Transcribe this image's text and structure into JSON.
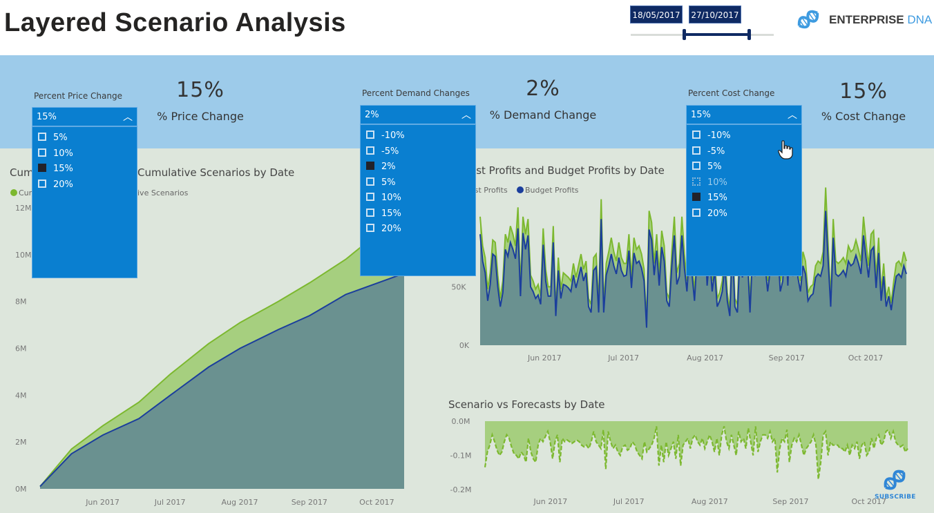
{
  "header": {
    "title": "Layered Scenario Analysis",
    "date_start": "18/05/2017",
    "date_end": "27/10/2017",
    "date_range_fraction": [
      0.37,
      0.83
    ],
    "logo": {
      "icon": "dna-icon",
      "word1": "ENTERPRISE",
      "word2": "DNA"
    }
  },
  "slicers": [
    {
      "title": "Percent Price Change",
      "selected": "15%",
      "items": [
        {
          "label": "5%",
          "state": "unchecked"
        },
        {
          "label": "10%",
          "state": "unchecked"
        },
        {
          "label": "15%",
          "state": "checked"
        },
        {
          "label": "20%",
          "state": "unchecked"
        }
      ]
    },
    {
      "title": "Percent Demand Changes",
      "selected": "2%",
      "items": [
        {
          "label": "-10%",
          "state": "unchecked"
        },
        {
          "label": "-5%",
          "state": "unchecked"
        },
        {
          "label": "2%",
          "state": "checked"
        },
        {
          "label": "5%",
          "state": "unchecked"
        },
        {
          "label": "10%",
          "state": "unchecked"
        },
        {
          "label": "15%",
          "state": "unchecked"
        },
        {
          "label": "20%",
          "state": "unchecked"
        }
      ]
    },
    {
      "title": "Percent Cost Change",
      "selected": "15%",
      "items": [
        {
          "label": "-10%",
          "state": "unchecked"
        },
        {
          "label": "-5%",
          "state": "unchecked"
        },
        {
          "label": "5%",
          "state": "unchecked"
        },
        {
          "label": "10%",
          "state": "hover"
        },
        {
          "label": "15%",
          "state": "checked"
        },
        {
          "label": "20%",
          "state": "unchecked"
        }
      ]
    }
  ],
  "kpis": [
    {
      "value": "15%",
      "label": "% Price Change"
    },
    {
      "value": "2%",
      "label": "% Demand Change"
    },
    {
      "value": "15%",
      "label": "% Cost Change"
    }
  ],
  "colors": {
    "forecast_green": "#7cb82f",
    "forecast_fill": "#a6cf7f",
    "budget_blue": "#1b3e9c",
    "budget_fill": "#6a9190",
    "slicer_blue": "#0a7fd0",
    "band_blue": "#9dcbea",
    "canvas": "#dde6dc"
  },
  "chart_data": [
    {
      "type": "area",
      "title_visible_left": "Cum",
      "title_visible_right": "Cumulative Scenarios by Date",
      "legend": [
        {
          "name": "Cum",
          "color": "#7cb82f"
        },
        {
          "name": "ive Scenarios",
          "color": null
        }
      ],
      "x_ticks": [
        "Jun 2017",
        "Jul 2017",
        "Aug 2017",
        "Sep 2017",
        "Oct 2017"
      ],
      "y_ticks": [
        "0M",
        "2M",
        "4M",
        "6M",
        "8M",
        "10M",
        "12M"
      ],
      "ylim": [
        0,
        12000000
      ],
      "x_range": [
        "2017-05-18",
        "2017-10-27"
      ],
      "series": [
        {
          "name": "Cumulative Forecast",
          "x": [
            "2017-05-18",
            "2017-06-01",
            "2017-06-15",
            "2017-07-01",
            "2017-07-15",
            "2017-08-01",
            "2017-08-15",
            "2017-09-01",
            "2017-09-15",
            "2017-10-01",
            "2017-10-10"
          ],
          "values": [
            100000,
            1700000,
            2700000,
            3700000,
            4900000,
            6200000,
            7100000,
            8000000,
            8800000,
            9800000,
            10500000
          ]
        },
        {
          "name": "Cumulative Scenarios",
          "x": [
            "2017-05-18",
            "2017-06-01",
            "2017-06-15",
            "2017-07-01",
            "2017-07-15",
            "2017-08-01",
            "2017-08-15",
            "2017-09-01",
            "2017-09-15",
            "2017-10-01",
            "2017-10-27"
          ],
          "values": [
            100000,
            1500000,
            2300000,
            3000000,
            4000000,
            5200000,
            6000000,
            6800000,
            7400000,
            8300000,
            9200000
          ]
        }
      ]
    },
    {
      "type": "area",
      "title_visible": "ast Profits and Budget Profits by Date",
      "legend": [
        {
          "name": "ast Profits",
          "color": "#7cb82f"
        },
        {
          "name": "Budget Profits",
          "color": "#1b3e9c"
        }
      ],
      "x_ticks": [
        "Jun 2017",
        "Jul 2017",
        "Aug 2017",
        "Sep 2017",
        "Oct 2017"
      ],
      "y_ticks": [
        "0K",
        "50K"
      ],
      "ylim": [
        0,
        130000
      ],
      "x_range": [
        "2017-05-18",
        "2017-10-27"
      ],
      "series": [
        {
          "name": "Forecast Profits",
          "values": [
            110000,
            85000,
            75000,
            48000,
            62000,
            90000,
            88000,
            60000,
            40000,
            55000,
            95000,
            88000,
            102000,
            95000,
            85000,
            118000,
            50000,
            110000,
            95000,
            108000,
            60000,
            55000,
            48000,
            52000,
            42000,
            100000,
            65000,
            50000,
            50000,
            102000,
            30000,
            75000,
            48000,
            62000,
            60000,
            58000,
            55000,
            70000,
            58000,
            68000,
            78000,
            65000,
            72000,
            40000,
            35000,
            75000,
            78000,
            35000,
            125000,
            35000,
            70000,
            80000,
            92000,
            80000,
            72000,
            88000,
            75000,
            70000,
            70000,
            95000,
            58000,
            92000,
            82000,
            85000,
            78000,
            65000,
            20000,
            115000,
            105000,
            70000,
            95000,
            60000,
            98000,
            85000,
            45000,
            40000,
            80000,
            110000,
            62000,
            70000,
            110000,
            78000,
            55000,
            95000,
            72000,
            45000,
            88000,
            80000,
            80000,
            120000,
            60000,
            90000,
            55000,
            75000,
            40000,
            45000,
            55000,
            80000,
            45000,
            30000,
            100000,
            40000,
            35000,
            90000,
            68000,
            120000,
            88000,
            35000,
            90000,
            70000,
            115000,
            88000,
            100000,
            80000,
            55000,
            75000,
            90000,
            80000,
            98000,
            55000,
            65000,
            115000,
            60000,
            120000,
            70000,
            105000,
            68000,
            55000,
            80000,
            72000,
            45000,
            50000,
            52000,
            68000,
            72000,
            70000,
            80000,
            135000,
            85000,
            40000,
            108000,
            72000,
            70000,
            72000,
            75000,
            70000,
            85000,
            80000,
            82000,
            90000,
            82000,
            72000,
            110000,
            88000,
            68000,
            95000,
            98000,
            58000,
            92000,
            45000,
            70000,
            40000,
            50000,
            36000,
            55000,
            70000,
            72000,
            68000,
            80000,
            72000
          ]
        },
        {
          "name": "Budget Profits",
          "values": [
            95000,
            72000,
            62000,
            38000,
            52000,
            78000,
            76000,
            50000,
            33000,
            45000,
            82000,
            76000,
            88000,
            82000,
            74000,
            100000,
            42000,
            96000,
            82000,
            94000,
            50000,
            46000,
            40000,
            43000,
            35000,
            86000,
            55000,
            42000,
            42000,
            88000,
            25000,
            64000,
            40000,
            52000,
            51000,
            49000,
            46000,
            60000,
            49000,
            58000,
            67000,
            55000,
            62000,
            33000,
            28000,
            64000,
            67000,
            28000,
            108000,
            28000,
            60000,
            68000,
            78000,
            68000,
            61000,
            75000,
            64000,
            59000,
            60000,
            81000,
            49000,
            79000,
            70000,
            72000,
            66000,
            55000,
            15000,
            99000,
            90000,
            60000,
            81000,
            51000,
            84000,
            72000,
            38000,
            33000,
            68000,
            94000,
            52000,
            59000,
            94000,
            66000,
            46000,
            81000,
            61000,
            38000,
            75000,
            68000,
            68000,
            103000,
            51000,
            77000,
            46000,
            64000,
            33000,
            38000,
            46000,
            68000,
            38000,
            25000,
            86000,
            33000,
            28000,
            77000,
            58000,
            103000,
            75000,
            28000,
            77000,
            59000,
            98000,
            75000,
            86000,
            68000,
            46000,
            64000,
            77000,
            68000,
            84000,
            46000,
            55000,
            98000,
            51000,
            103000,
            59000,
            90000,
            58000,
            46000,
            68000,
            61000,
            38000,
            42000,
            44000,
            58000,
            61000,
            59000,
            68000,
            115000,
            72000,
            33000,
            92000,
            61000,
            59000,
            61000,
            64000,
            59000,
            72000,
            68000,
            70000,
            77000,
            70000,
            61000,
            94000,
            75000,
            58000,
            81000,
            84000,
            49000,
            79000,
            38000,
            59000,
            33000,
            42000,
            30000,
            46000,
            59000,
            61000,
            58000,
            68000,
            61000
          ]
        }
      ]
    },
    {
      "type": "area",
      "title": "Scenario vs Forecasts by Date",
      "x_ticks": [
        "Jun 2017",
        "Jul 2017",
        "Aug 2017",
        "Sep 2017",
        "Oct 2017"
      ],
      "y_ticks": [
        "0.0M",
        "-0.1M",
        "-0.2M"
      ],
      "ylim": [
        -0.2,
        0.0
      ],
      "y_unit": "M",
      "x_range": [
        "2017-05-18",
        "2017-10-27"
      ],
      "series": [
        {
          "name": "Scenario vs Forecasts",
          "line_style": "dashed",
          "values": [
            -0.135,
            -0.09,
            -0.07,
            -0.04,
            -0.06,
            -0.085,
            -0.1,
            -0.09,
            -0.06,
            -0.04,
            -0.05,
            -0.075,
            -0.095,
            -0.1,
            -0.11,
            -0.09,
            -0.1,
            -0.12,
            -0.05,
            -0.09,
            -0.11,
            -0.12,
            -0.07,
            -0.05,
            -0.06,
            -0.045,
            -0.03,
            -0.06,
            -0.11,
            -0.06,
            -0.04,
            -0.12,
            -0.05,
            -0.06,
            -0.055,
            -0.06,
            -0.065,
            -0.06,
            -0.055,
            -0.06,
            -0.07,
            -0.075,
            -0.07,
            -0.08,
            -0.06,
            -0.03,
            -0.06,
            -0.07,
            -0.08,
            -0.025,
            -0.14,
            -0.03,
            -0.06,
            -0.08,
            -0.07,
            -0.09,
            -0.1,
            -0.075,
            -0.07,
            -0.085,
            -0.08,
            -0.06,
            -0.07,
            -0.09,
            -0.1,
            -0.11,
            -0.06,
            -0.09,
            -0.08,
            -0.07,
            -0.05,
            -0.015,
            -0.13,
            -0.07,
            -0.12,
            -0.06,
            -0.1,
            -0.08,
            -0.06,
            -0.11,
            -0.04,
            -0.13,
            -0.07,
            -0.06,
            -0.05,
            -0.08,
            -0.05,
            -0.04,
            -0.06,
            -0.07,
            -0.05,
            -0.08,
            -0.06,
            -0.04,
            -0.06,
            -0.09,
            -0.05,
            -0.1,
            -0.04,
            -0.015,
            -0.06,
            -0.08,
            -0.04,
            -0.07,
            -0.1,
            -0.03,
            -0.06,
            -0.05,
            -0.08,
            -0.02,
            -0.06,
            -0.1,
            -0.015,
            -0.09,
            -0.06,
            -0.04,
            -0.04,
            -0.05,
            -0.03,
            -0.06,
            -0.05,
            -0.15,
            -0.08,
            -0.05,
            -0.06,
            -0.025,
            -0.12,
            -0.07,
            -0.05,
            -0.06,
            -0.04,
            -0.07,
            -0.1,
            -0.08,
            -0.07,
            -0.06,
            -0.04,
            -0.07,
            -0.17,
            -0.12,
            -0.04,
            -0.03,
            -0.1,
            -0.06,
            -0.07,
            -0.07,
            -0.07,
            -0.08,
            -0.08,
            -0.09,
            -0.07,
            -0.1,
            -0.07,
            -0.08,
            -0.06,
            -0.11,
            -0.07,
            -0.06,
            -0.1,
            -0.09,
            -0.05,
            -0.08,
            -0.05,
            -0.04,
            -0.07,
            -0.06,
            -0.03,
            -0.025,
            -0.05,
            -0.03,
            -0.06,
            -0.07,
            -0.075,
            -0.07,
            -0.09,
            -0.08
          ]
        }
      ]
    }
  ],
  "subscribe": {
    "icon": "dna-icon",
    "label": "SUBSCRIBE"
  }
}
